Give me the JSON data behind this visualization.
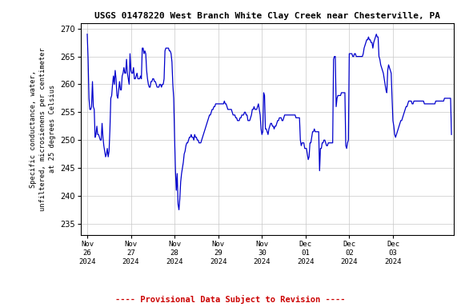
{
  "title": "USGS 01478220 West Branch White Clay Creek near Chesterville, PA",
  "ylabel_lines": [
    "Specific conductance, water,",
    "unfiltered, microsienens per centimeter",
    "at 25 degrees Celsius"
  ],
  "xlabel_dates": [
    "Nov\n26\n2024",
    "Nov\n27\n2024",
    "Nov\n28\n2024",
    "Nov\n29\n2024",
    "Nov\n30\n2024",
    "Dec\n01\n2024",
    "Dec\n02\n2024",
    "Dec\n03\n2024"
  ],
  "footer": "---- Provisional Data Subject to Revision ----",
  "ylim": [
    233,
    271
  ],
  "yticks": [
    235,
    240,
    245,
    250,
    255,
    260,
    265,
    270
  ],
  "line_color": "#0000cc",
  "footer_color": "#cc0000",
  "bg_color": "#ffffff",
  "grid_color": "#c8c8c8",
  "data": [
    [
      0.0,
      269.0
    ],
    [
      0.02,
      264.5
    ],
    [
      0.04,
      257.5
    ],
    [
      0.06,
      255.5
    ],
    [
      0.08,
      255.5
    ],
    [
      0.1,
      256.0
    ],
    [
      0.12,
      260.5
    ],
    [
      0.14,
      256.0
    ],
    [
      0.16,
      255.5
    ],
    [
      0.18,
      250.5
    ],
    [
      0.2,
      251.0
    ],
    [
      0.22,
      252.5
    ],
    [
      0.24,
      251.0
    ],
    [
      0.26,
      251.0
    ],
    [
      0.28,
      250.5
    ],
    [
      0.3,
      250.0
    ],
    [
      0.32,
      250.0
    ],
    [
      0.34,
      253.0
    ],
    [
      0.36,
      250.5
    ],
    [
      0.38,
      249.0
    ],
    [
      0.4,
      248.0
    ],
    [
      0.42,
      247.0
    ],
    [
      0.44,
      247.5
    ],
    [
      0.46,
      248.5
    ],
    [
      0.48,
      247.0
    ],
    [
      0.5,
      248.0
    ],
    [
      0.52,
      252.0
    ],
    [
      0.54,
      257.5
    ],
    [
      0.56,
      258.0
    ],
    [
      0.58,
      260.0
    ],
    [
      0.6,
      261.5
    ],
    [
      0.62,
      260.0
    ],
    [
      0.64,
      262.5
    ],
    [
      0.66,
      261.0
    ],
    [
      0.68,
      258.0
    ],
    [
      0.7,
      257.5
    ],
    [
      0.72,
      259.0
    ],
    [
      0.74,
      260.5
    ],
    [
      0.76,
      259.0
    ],
    [
      0.78,
      259.0
    ],
    [
      0.8,
      261.5
    ],
    [
      0.82,
      262.0
    ],
    [
      0.84,
      263.0
    ],
    [
      0.86,
      262.0
    ],
    [
      0.88,
      262.0
    ],
    [
      0.9,
      264.5
    ],
    [
      0.92,
      262.0
    ],
    [
      0.94,
      261.0
    ],
    [
      0.96,
      260.0
    ],
    [
      0.98,
      265.5
    ],
    [
      1.0,
      262.5
    ],
    [
      1.02,
      262.0
    ],
    [
      1.04,
      262.0
    ],
    [
      1.06,
      263.0
    ],
    [
      1.08,
      261.0
    ],
    [
      1.1,
      261.0
    ],
    [
      1.12,
      261.5
    ],
    [
      1.14,
      262.0
    ],
    [
      1.16,
      261.0
    ],
    [
      1.18,
      261.0
    ],
    [
      1.2,
      261.0
    ],
    [
      1.22,
      261.5
    ],
    [
      1.24,
      261.0
    ],
    [
      1.26,
      266.5
    ],
    [
      1.28,
      266.5
    ],
    [
      1.3,
      265.5
    ],
    [
      1.32,
      266.0
    ],
    [
      1.34,
      265.5
    ],
    [
      1.36,
      262.5
    ],
    [
      1.38,
      261.0
    ],
    [
      1.4,
      260.0
    ],
    [
      1.42,
      259.5
    ],
    [
      1.44,
      259.5
    ],
    [
      1.46,
      260.5
    ],
    [
      1.48,
      260.5
    ],
    [
      1.5,
      261.0
    ],
    [
      1.52,
      261.0
    ],
    [
      1.54,
      260.5
    ],
    [
      1.56,
      260.5
    ],
    [
      1.58,
      260.0
    ],
    [
      1.6,
      259.5
    ],
    [
      1.62,
      259.5
    ],
    [
      1.64,
      259.5
    ],
    [
      1.66,
      260.0
    ],
    [
      1.68,
      260.0
    ],
    [
      1.7,
      259.5
    ],
    [
      1.72,
      260.0
    ],
    [
      1.74,
      260.0
    ],
    [
      1.76,
      261.0
    ],
    [
      1.78,
      266.0
    ],
    [
      1.8,
      266.5
    ],
    [
      1.82,
      266.5
    ],
    [
      1.84,
      266.5
    ],
    [
      1.86,
      266.5
    ],
    [
      1.88,
      266.0
    ],
    [
      1.9,
      266.0
    ],
    [
      1.92,
      265.5
    ],
    [
      1.94,
      264.0
    ],
    [
      1.96,
      260.0
    ],
    [
      1.98,
      257.5
    ],
    [
      2.0,
      250.5
    ],
    [
      2.02,
      244.5
    ],
    [
      2.04,
      241.0
    ],
    [
      2.06,
      244.0
    ],
    [
      2.08,
      238.5
    ],
    [
      2.1,
      237.5
    ],
    [
      2.12,
      239.5
    ],
    [
      2.14,
      242.5
    ],
    [
      2.16,
      244.0
    ],
    [
      2.18,
      245.0
    ],
    [
      2.2,
      246.0
    ],
    [
      2.22,
      247.5
    ],
    [
      2.24,
      248.0
    ],
    [
      2.26,
      249.0
    ],
    [
      2.28,
      249.5
    ],
    [
      2.3,
      249.5
    ],
    [
      2.32,
      250.0
    ],
    [
      2.34,
      250.5
    ],
    [
      2.36,
      250.5
    ],
    [
      2.38,
      251.0
    ],
    [
      2.4,
      250.5
    ],
    [
      2.42,
      250.5
    ],
    [
      2.44,
      250.0
    ],
    [
      2.46,
      251.0
    ],
    [
      2.48,
      250.5
    ],
    [
      2.5,
      250.5
    ],
    [
      2.52,
      250.0
    ],
    [
      2.54,
      250.0
    ],
    [
      2.56,
      249.5
    ],
    [
      2.58,
      249.5
    ],
    [
      2.6,
      249.5
    ],
    [
      2.62,
      250.0
    ],
    [
      2.64,
      250.5
    ],
    [
      2.66,
      251.0
    ],
    [
      2.68,
      251.5
    ],
    [
      2.7,
      252.0
    ],
    [
      2.72,
      252.5
    ],
    [
      2.74,
      253.0
    ],
    [
      2.76,
      253.5
    ],
    [
      2.78,
      254.0
    ],
    [
      2.8,
      254.5
    ],
    [
      2.82,
      254.5
    ],
    [
      2.84,
      255.0
    ],
    [
      2.86,
      255.5
    ],
    [
      2.88,
      255.5
    ],
    [
      2.9,
      256.0
    ],
    [
      2.92,
      256.0
    ],
    [
      2.94,
      256.5
    ],
    [
      2.96,
      256.5
    ],
    [
      2.98,
      256.5
    ],
    [
      3.0,
      256.5
    ],
    [
      3.02,
      256.5
    ],
    [
      3.04,
      256.5
    ],
    [
      3.06,
      256.5
    ],
    [
      3.08,
      256.5
    ],
    [
      3.1,
      256.5
    ],
    [
      3.12,
      256.5
    ],
    [
      3.14,
      257.0
    ],
    [
      3.16,
      256.5
    ],
    [
      3.18,
      256.5
    ],
    [
      3.2,
      256.0
    ],
    [
      3.22,
      255.5
    ],
    [
      3.24,
      255.5
    ],
    [
      3.26,
      255.5
    ],
    [
      3.28,
      255.5
    ],
    [
      3.3,
      255.5
    ],
    [
      3.32,
      255.0
    ],
    [
      3.34,
      254.5
    ],
    [
      3.36,
      254.5
    ],
    [
      3.38,
      254.5
    ],
    [
      3.4,
      254.0
    ],
    [
      3.42,
      254.0
    ],
    [
      3.44,
      253.5
    ],
    [
      3.46,
      253.5
    ],
    [
      3.48,
      253.5
    ],
    [
      3.5,
      254.0
    ],
    [
      3.52,
      254.0
    ],
    [
      3.54,
      254.5
    ],
    [
      3.56,
      254.5
    ],
    [
      3.58,
      254.5
    ],
    [
      3.6,
      255.0
    ],
    [
      3.62,
      255.0
    ],
    [
      3.64,
      254.5
    ],
    [
      3.66,
      254.5
    ],
    [
      3.68,
      253.5
    ],
    [
      3.7,
      253.5
    ],
    [
      3.72,
      253.5
    ],
    [
      3.74,
      254.0
    ],
    [
      3.76,
      254.5
    ],
    [
      3.78,
      255.5
    ],
    [
      3.8,
      255.5
    ],
    [
      3.82,
      256.0
    ],
    [
      3.84,
      255.5
    ],
    [
      3.86,
      255.5
    ],
    [
      3.88,
      255.5
    ],
    [
      3.9,
      256.0
    ],
    [
      3.92,
      256.5
    ],
    [
      3.94,
      255.5
    ],
    [
      3.96,
      254.5
    ],
    [
      3.98,
      252.0
    ],
    [
      4.0,
      251.0
    ],
    [
      4.02,
      251.5
    ],
    [
      4.04,
      258.5
    ],
    [
      4.06,
      258.0
    ],
    [
      4.08,
      252.0
    ],
    [
      4.1,
      252.0
    ],
    [
      4.12,
      251.5
    ],
    [
      4.14,
      251.0
    ],
    [
      4.16,
      252.0
    ],
    [
      4.18,
      252.5
    ],
    [
      4.2,
      253.0
    ],
    [
      4.22,
      253.0
    ],
    [
      4.24,
      252.5
    ],
    [
      4.26,
      252.5
    ],
    [
      4.28,
      252.0
    ],
    [
      4.3,
      252.5
    ],
    [
      4.32,
      252.5
    ],
    [
      4.34,
      253.0
    ],
    [
      4.36,
      253.5
    ],
    [
      4.38,
      253.5
    ],
    [
      4.4,
      254.0
    ],
    [
      4.42,
      254.0
    ],
    [
      4.44,
      254.0
    ],
    [
      4.46,
      253.5
    ],
    [
      4.48,
      253.5
    ],
    [
      4.5,
      254.0
    ],
    [
      4.52,
      254.5
    ],
    [
      4.54,
      254.5
    ],
    [
      4.56,
      254.5
    ],
    [
      4.58,
      254.5
    ],
    [
      4.6,
      254.5
    ],
    [
      4.62,
      254.5
    ],
    [
      4.64,
      254.5
    ],
    [
      4.66,
      254.5
    ],
    [
      4.68,
      254.5
    ],
    [
      4.7,
      254.5
    ],
    [
      4.72,
      254.5
    ],
    [
      4.74,
      254.5
    ],
    [
      4.76,
      254.5
    ],
    [
      4.78,
      254.0
    ],
    [
      4.8,
      254.0
    ],
    [
      4.82,
      254.0
    ],
    [
      4.84,
      254.0
    ],
    [
      4.86,
      254.0
    ],
    [
      4.88,
      250.0
    ],
    [
      4.9,
      249.0
    ],
    [
      4.92,
      249.5
    ],
    [
      4.94,
      249.5
    ],
    [
      4.96,
      249.5
    ],
    [
      4.98,
      248.5
    ],
    [
      5.0,
      248.5
    ],
    [
      5.02,
      248.5
    ],
    [
      5.04,
      247.5
    ],
    [
      5.06,
      246.5
    ],
    [
      5.08,
      247.0
    ],
    [
      5.1,
      249.5
    ],
    [
      5.12,
      249.5
    ],
    [
      5.14,
      250.5
    ],
    [
      5.16,
      251.5
    ],
    [
      5.18,
      251.5
    ],
    [
      5.2,
      252.0
    ],
    [
      5.22,
      251.5
    ],
    [
      5.24,
      251.5
    ],
    [
      5.26,
      251.5
    ],
    [
      5.28,
      251.5
    ],
    [
      5.3,
      251.5
    ],
    [
      5.32,
      244.5
    ],
    [
      5.34,
      248.5
    ],
    [
      5.36,
      248.5
    ],
    [
      5.38,
      249.5
    ],
    [
      5.4,
      249.5
    ],
    [
      5.42,
      250.0
    ],
    [
      5.44,
      250.0
    ],
    [
      5.46,
      249.5
    ],
    [
      5.48,
      249.0
    ],
    [
      5.5,
      249.0
    ],
    [
      5.52,
      249.5
    ],
    [
      5.54,
      249.5
    ],
    [
      5.56,
      249.5
    ],
    [
      5.58,
      249.5
    ],
    [
      5.6,
      249.5
    ],
    [
      5.62,
      249.5
    ],
    [
      5.64,
      264.5
    ],
    [
      5.66,
      265.0
    ],
    [
      5.68,
      265.0
    ],
    [
      5.7,
      256.0
    ],
    [
      5.72,
      257.5
    ],
    [
      5.74,
      258.0
    ],
    [
      5.76,
      258.0
    ],
    [
      5.78,
      258.0
    ],
    [
      5.8,
      258.0
    ],
    [
      5.82,
      258.5
    ],
    [
      5.84,
      258.5
    ],
    [
      5.86,
      258.5
    ],
    [
      5.88,
      258.5
    ],
    [
      5.9,
      258.5
    ],
    [
      5.92,
      249.0
    ],
    [
      5.94,
      248.5
    ],
    [
      5.96,
      249.5
    ],
    [
      5.98,
      250.0
    ],
    [
      6.0,
      265.5
    ],
    [
      6.02,
      265.5
    ],
    [
      6.04,
      265.5
    ],
    [
      6.06,
      265.5
    ],
    [
      6.08,
      265.0
    ],
    [
      6.1,
      265.0
    ],
    [
      6.12,
      265.5
    ],
    [
      6.14,
      265.5
    ],
    [
      6.16,
      265.0
    ],
    [
      6.18,
      265.0
    ],
    [
      6.2,
      265.0
    ],
    [
      6.22,
      265.0
    ],
    [
      6.24,
      265.0
    ],
    [
      6.26,
      265.0
    ],
    [
      6.28,
      265.0
    ],
    [
      6.3,
      265.0
    ],
    [
      6.32,
      265.5
    ],
    [
      6.34,
      266.5
    ],
    [
      6.36,
      267.0
    ],
    [
      6.38,
      267.5
    ],
    [
      6.4,
      268.0
    ],
    [
      6.42,
      268.0
    ],
    [
      6.44,
      268.5
    ],
    [
      6.46,
      268.0
    ],
    [
      6.48,
      268.0
    ],
    [
      6.5,
      267.5
    ],
    [
      6.52,
      267.5
    ],
    [
      6.54,
      266.5
    ],
    [
      6.56,
      267.5
    ],
    [
      6.58,
      268.0
    ],
    [
      6.6,
      268.5
    ],
    [
      6.62,
      269.0
    ],
    [
      6.64,
      268.5
    ],
    [
      6.66,
      268.5
    ],
    [
      6.68,
      265.0
    ],
    [
      6.7,
      264.5
    ],
    [
      6.72,
      263.5
    ],
    [
      6.74,
      263.0
    ],
    [
      6.76,
      262.5
    ],
    [
      6.78,
      262.0
    ],
    [
      6.8,
      261.0
    ],
    [
      6.82,
      260.0
    ],
    [
      6.84,
      259.0
    ],
    [
      6.86,
      258.5
    ],
    [
      6.88,
      262.5
    ],
    [
      6.9,
      263.5
    ],
    [
      6.92,
      263.0
    ],
    [
      6.94,
      262.5
    ],
    [
      6.96,
      262.0
    ],
    [
      6.98,
      257.5
    ],
    [
      7.0,
      253.5
    ],
    [
      7.02,
      252.5
    ],
    [
      7.04,
      251.0
    ],
    [
      7.06,
      250.5
    ],
    [
      7.08,
      251.0
    ],
    [
      7.1,
      251.5
    ],
    [
      7.12,
      252.0
    ],
    [
      7.14,
      252.5
    ],
    [
      7.16,
      253.0
    ],
    [
      7.18,
      253.5
    ],
    [
      7.2,
      253.5
    ],
    [
      7.22,
      254.0
    ],
    [
      7.24,
      254.5
    ],
    [
      7.26,
      255.0
    ],
    [
      7.28,
      255.5
    ],
    [
      7.3,
      256.0
    ],
    [
      7.32,
      256.0
    ],
    [
      7.34,
      256.5
    ],
    [
      7.36,
      257.0
    ],
    [
      7.38,
      257.0
    ],
    [
      7.4,
      257.0
    ],
    [
      7.42,
      257.0
    ],
    [
      7.44,
      256.5
    ],
    [
      7.46,
      256.5
    ],
    [
      7.48,
      257.0
    ],
    [
      7.5,
      257.0
    ],
    [
      7.52,
      257.0
    ],
    [
      7.54,
      257.0
    ],
    [
      7.56,
      257.0
    ],
    [
      7.58,
      257.0
    ],
    [
      7.6,
      257.0
    ],
    [
      7.62,
      257.0
    ],
    [
      7.64,
      257.0
    ],
    [
      7.66,
      257.0
    ],
    [
      7.68,
      257.0
    ],
    [
      7.7,
      257.0
    ],
    [
      7.72,
      256.5
    ],
    [
      7.74,
      256.5
    ],
    [
      7.76,
      256.5
    ],
    [
      7.78,
      256.5
    ],
    [
      7.8,
      256.5
    ],
    [
      7.82,
      256.5
    ],
    [
      7.84,
      256.5
    ],
    [
      7.86,
      256.5
    ],
    [
      7.88,
      256.5
    ],
    [
      7.9,
      256.5
    ],
    [
      7.92,
      256.5
    ],
    [
      7.94,
      256.5
    ],
    [
      7.96,
      256.5
    ],
    [
      7.98,
      257.0
    ],
    [
      8.0,
      257.0
    ],
    [
      8.02,
      257.0
    ],
    [
      8.04,
      257.0
    ],
    [
      8.06,
      257.0
    ],
    [
      8.08,
      257.0
    ],
    [
      8.1,
      257.0
    ],
    [
      8.12,
      257.0
    ],
    [
      8.14,
      257.0
    ],
    [
      8.16,
      257.0
    ],
    [
      8.18,
      257.5
    ],
    [
      8.2,
      257.5
    ],
    [
      8.22,
      257.5
    ],
    [
      8.24,
      257.5
    ],
    [
      8.26,
      257.5
    ],
    [
      8.28,
      257.5
    ],
    [
      8.3,
      257.5
    ],
    [
      8.32,
      257.5
    ],
    [
      8.34,
      251.0
    ]
  ]
}
